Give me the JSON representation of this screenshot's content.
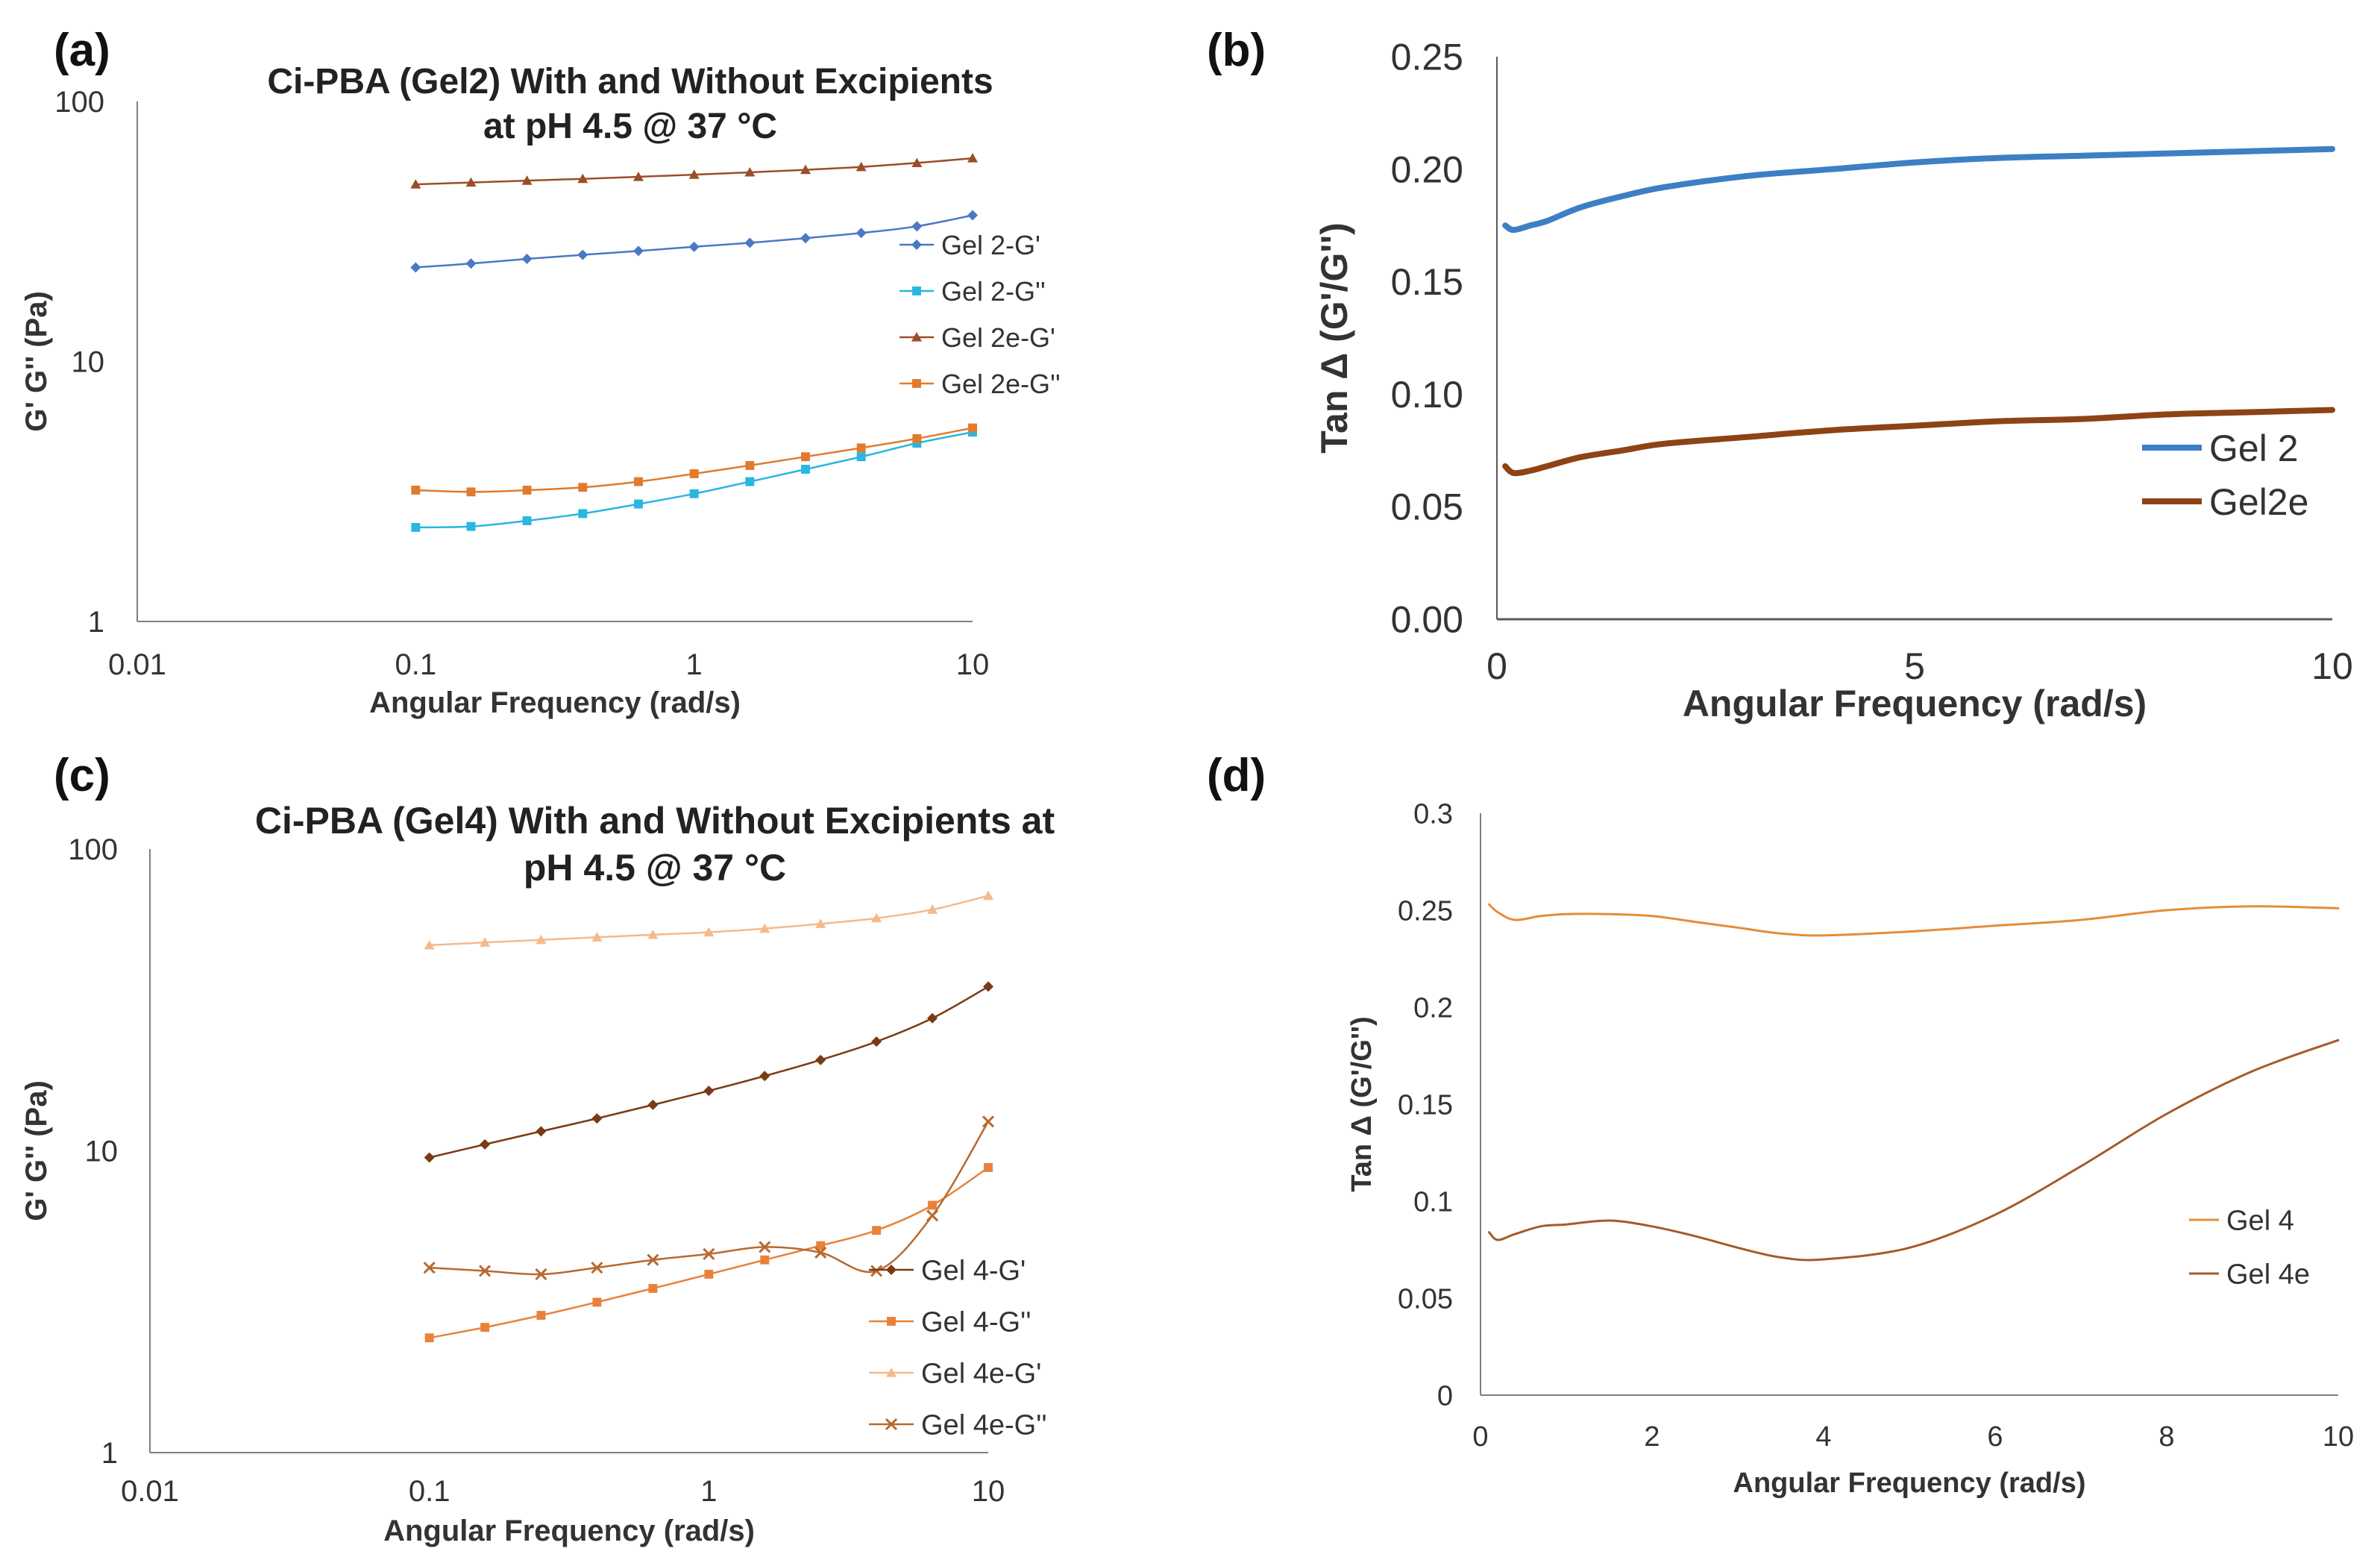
{
  "chart_data": [
    {
      "id": "a",
      "panel_label": "(a)",
      "type": "line",
      "title_lines": [
        "Ci-PBA (Gel2) With and Without Excipients",
        "at pH 4.5 @ 37 °C"
      ],
      "xlabel": "Angular Frequency (rad/s)",
      "ylabel": "G' G'' (Pa)",
      "xscale": "log",
      "yscale": "log",
      "xlim": [
        0.01,
        10
      ],
      "ylim": [
        1,
        100
      ],
      "xticks": [
        0.01,
        0.1,
        1,
        10
      ],
      "xtick_labels": [
        "0.01",
        "0.1",
        "1",
        "10"
      ],
      "yticks": [
        1,
        10,
        100
      ],
      "ytick_labels": [
        "1",
        "10",
        "100"
      ],
      "legend_position": "right",
      "x": [
        0.1,
        0.158,
        0.251,
        0.398,
        0.631,
        1,
        1.585,
        2.512,
        3.981,
        6.31,
        10
      ],
      "series": [
        {
          "name": "Gel 2-G'",
          "color": "#4a78c4",
          "marker": "diamond",
          "values": [
            23,
            23.8,
            24.8,
            25.7,
            26.6,
            27.6,
            28.6,
            29.8,
            31.2,
            33.1,
            36.5
          ]
        },
        {
          "name": "Gel 2-G''",
          "color": "#29b6e0",
          "marker": "square",
          "values": [
            2.3,
            2.32,
            2.44,
            2.6,
            2.83,
            3.1,
            3.45,
            3.85,
            4.3,
            4.85,
            5.35
          ]
        },
        {
          "name": "Gel 2e-G'",
          "color": "#9a4e28",
          "marker": "triangle",
          "values": [
            48,
            48.8,
            49.6,
            50.4,
            51.3,
            52.3,
            53.4,
            54.6,
            56,
            58,
            60.5
          ]
        },
        {
          "name": "Gel 2e-G''",
          "color": "#e07b2e",
          "marker": "square",
          "values": [
            3.2,
            3.15,
            3.2,
            3.28,
            3.45,
            3.7,
            3.98,
            4.3,
            4.65,
            5.05,
            5.55
          ]
        }
      ]
    },
    {
      "id": "b",
      "panel_label": "(b)",
      "type": "line",
      "title_lines": [],
      "xlabel": "Angular Frequency (rad/s)",
      "ylabel": "Tan Δ (G'/G'')",
      "xscale": "linear",
      "yscale": "linear",
      "xlim": [
        0,
        10
      ],
      "ylim": [
        0,
        0.25
      ],
      "xticks": [
        0,
        5,
        10
      ],
      "xtick_labels": [
        "0",
        "5",
        "10"
      ],
      "yticks": [
        0,
        0.05,
        0.1,
        0.15,
        0.2,
        0.25
      ],
      "ytick_labels": [
        "0.00",
        "0.05",
        "0.10",
        "0.15",
        "0.20",
        "0.25"
      ],
      "legend_position": "bottom-right",
      "x": [
        0.1,
        0.2,
        0.4,
        0.6,
        1,
        1.5,
        2,
        3,
        4,
        5,
        6,
        7,
        8,
        9,
        10
      ],
      "series": [
        {
          "name": "Gel 2",
          "color": "#3d7fc4",
          "line_width": 8,
          "values": [
            0.175,
            0.173,
            0.175,
            0.177,
            0.183,
            0.188,
            0.192,
            0.197,
            0.2,
            0.203,
            0.205,
            0.206,
            0.207,
            0.208,
            0.209
          ]
        },
        {
          "name": "Gel2e",
          "color": "#8e4314",
          "line_width": 8,
          "values": [
            0.068,
            0.065,
            0.066,
            0.068,
            0.072,
            0.075,
            0.078,
            0.081,
            0.084,
            0.086,
            0.088,
            0.089,
            0.091,
            0.092,
            0.093
          ]
        }
      ]
    },
    {
      "id": "c",
      "panel_label": "(c)",
      "type": "line",
      "title_lines": [
        "Ci-PBA (Gel4) With and Without Excipients at",
        "pH 4.5 @ 37 °C"
      ],
      "xlabel": "Angular Frequency (rad/s)",
      "ylabel": "G' G'' (Pa)",
      "xscale": "log",
      "yscale": "log",
      "xlim": [
        0.01,
        10
      ],
      "ylim": [
        1,
        100
      ],
      "xticks": [
        0.01,
        0.1,
        1,
        10
      ],
      "xtick_labels": [
        "0.01",
        "0.1",
        "1",
        "10"
      ],
      "yticks": [
        1,
        10,
        100
      ],
      "ytick_labels": [
        "1",
        "10",
        "100"
      ],
      "legend_position": "bottom-right",
      "x": [
        0.1,
        0.158,
        0.251,
        0.398,
        0.631,
        1,
        1.585,
        2.512,
        3.981,
        6.31,
        10
      ],
      "series": [
        {
          "name": "Gel 4-G'",
          "color": "#7a3a16",
          "marker": "diamond",
          "values": [
            9.5,
            10.5,
            11.6,
            12.8,
            14.2,
            15.8,
            17.7,
            20,
            23,
            27.5,
            35
          ]
        },
        {
          "name": "Gel 4-G''",
          "color": "#e8823a",
          "marker": "square",
          "values": [
            2.4,
            2.6,
            2.85,
            3.15,
            3.5,
            3.9,
            4.35,
            4.85,
            5.45,
            6.6,
            8.8
          ]
        },
        {
          "name": "Gel 4e-G'",
          "color": "#f4b98c",
          "marker": "triangle",
          "values": [
            48,
            49,
            50,
            51,
            52,
            53,
            54.5,
            56.5,
            59,
            63,
            70
          ]
        },
        {
          "name": "Gel 4e-G''",
          "color": "#b8692e",
          "marker": "x",
          "values": [
            4.1,
            4.0,
            3.9,
            4.1,
            4.35,
            4.55,
            4.8,
            4.6,
            4.0,
            6.1,
            12.5
          ]
        }
      ]
    },
    {
      "id": "d",
      "panel_label": "(d)",
      "type": "line",
      "title_lines": [],
      "xlabel": "Angular Frequency (rad/s)",
      "ylabel": "Tan Δ (G'/G'')",
      "xscale": "linear",
      "yscale": "linear",
      "xlim": [
        0,
        10
      ],
      "ylim": [
        0,
        0.3
      ],
      "xticks": [
        0,
        2,
        4,
        6,
        8,
        10
      ],
      "xtick_labels": [
        "0",
        "2",
        "4",
        "6",
        "8",
        "10"
      ],
      "yticks": [
        0,
        0.05,
        0.1,
        0.15,
        0.2,
        0.25,
        0.3
      ],
      "ytick_labels": [
        "0",
        "0.05",
        "0.1",
        "0.15",
        "0.2",
        "0.25",
        "0.3"
      ],
      "legend_position": "bottom-right",
      "x": [
        0.1,
        0.2,
        0.4,
        0.7,
        1,
        1.5,
        2,
        2.5,
        3,
        3.5,
        4,
        5,
        6,
        7,
        8,
        9,
        10
      ],
      "series": [
        {
          "name": "Gel 4",
          "color": "#e58c3c",
          "line_width": 3,
          "values": [
            0.253,
            0.249,
            0.245,
            0.247,
            0.248,
            0.248,
            0.247,
            0.244,
            0.241,
            0.238,
            0.237,
            0.239,
            0.242,
            0.245,
            0.25,
            0.252,
            0.251
          ]
        },
        {
          "name": "Gel 4e",
          "color": "#a65a2a",
          "line_width": 3,
          "values": [
            0.084,
            0.08,
            0.083,
            0.087,
            0.088,
            0.09,
            0.087,
            0.082,
            0.076,
            0.071,
            0.07,
            0.076,
            0.093,
            0.118,
            0.145,
            0.167,
            0.183
          ]
        }
      ]
    }
  ]
}
